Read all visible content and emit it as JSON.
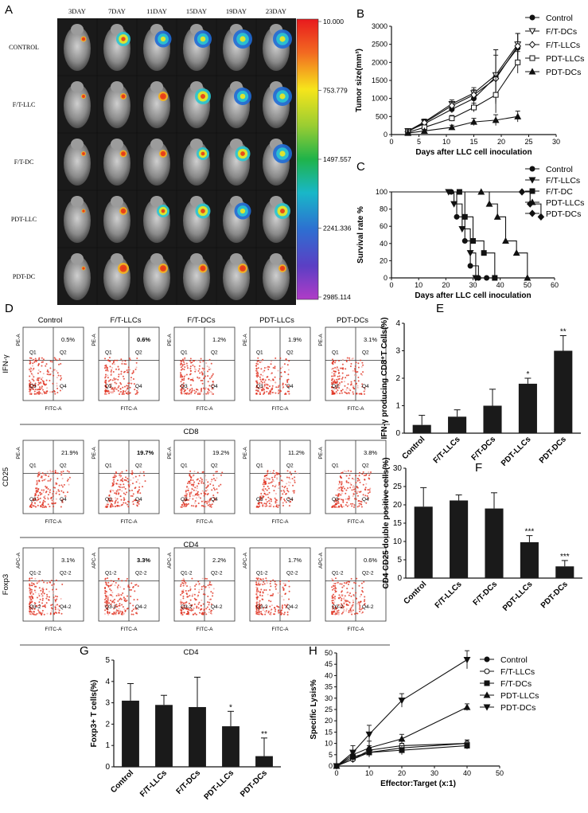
{
  "panel_letters": [
    "A",
    "B",
    "C",
    "D",
    "E",
    "F",
    "G",
    "H"
  ],
  "imaging": {
    "days": [
      "3DAY",
      "7DAY",
      "11DAY",
      "15DAY",
      "19DAY",
      "23DAY"
    ],
    "groups": [
      "CONTROL",
      "F/T-LLC",
      "F/T-DC",
      "PDT-LLC",
      "PDT-DC"
    ],
    "signal_level": [
      [
        0.15,
        0.7,
        0.85,
        0.9,
        1.0,
        1.0
      ],
      [
        0.1,
        0.2,
        0.4,
        0.8,
        0.9,
        1.0
      ],
      [
        0.1,
        0.25,
        0.3,
        0.6,
        0.75,
        1.0
      ],
      [
        0.05,
        0.3,
        0.6,
        0.75,
        0.85,
        0.8
      ],
      [
        0.05,
        0.5,
        0.4,
        0.35,
        0.4,
        0.3
      ]
    ],
    "colorbar_ticks": [
      "10.000",
      "753.779",
      "1497.557",
      "2241.336",
      "2985.114"
    ]
  },
  "flow": {
    "rows": [
      {
        "ylabel": "IFN-γ",
        "xlabel": "CD8",
        "y_axis": "PE-A",
        "x_axis": "FITC-A",
        "quadrants": [
          "Q1",
          "Q2",
          "Q3",
          "Q4"
        ],
        "groups": [
          "Control",
          "F/T-LLCs",
          "F/T-DCs",
          "PDT-LLCs",
          "PDT-DCs"
        ],
        "values": [
          "0.5%",
          "0.6%",
          "1.2%",
          "1.9%",
          "3.1%"
        ]
      },
      {
        "ylabel": "CD25",
        "xlabel": "CD4",
        "y_axis": "PE-A",
        "x_axis": "FITC-A",
        "quadrants": [
          "Q1",
          "Q2",
          "Q3",
          "Q4"
        ],
        "values": [
          "21.9%",
          "19.7%",
          "19.2%",
          "11.2%",
          "3.8%"
        ]
      },
      {
        "ylabel": "Foxp3",
        "xlabel": "CD4",
        "y_axis": "APC-A",
        "x_axis": "FITC-A",
        "quadrants": [
          "Q1-2",
          "Q2-2",
          "Q3-2",
          "Q4-2"
        ],
        "values": [
          "3.1%",
          "3.3%",
          "2.2%",
          "1.7%",
          "0.6%"
        ]
      }
    ]
  },
  "chart_data": [
    {
      "panel": "B",
      "type": "line",
      "xlabel": "Days after LLC cell inoculation",
      "ylabel": "Tumor size(mm³)",
      "xlim": [
        0,
        30
      ],
      "ylim": [
        0,
        3000
      ],
      "xticks": [
        0,
        5,
        10,
        15,
        20,
        25,
        30
      ],
      "yticks": [
        0,
        500,
        1000,
        1500,
        2000,
        2500,
        3000
      ],
      "series": [
        {
          "name": "Control",
          "marker": "circle-filled",
          "x": [
            3,
            6,
            11,
            15,
            19,
            23
          ],
          "y": [
            100,
            300,
            700,
            1000,
            1600,
            2400
          ],
          "err": [
            60,
            70,
            100,
            150,
            750,
            400
          ]
        },
        {
          "name": "F/T-DCs",
          "marker": "tri-down-open",
          "x": [
            3,
            6,
            11,
            15,
            19,
            23
          ],
          "y": [
            100,
            350,
            850,
            1150,
            1650,
            2500
          ],
          "err": [
            60,
            80,
            110,
            150,
            700,
            300
          ]
        },
        {
          "name": "F/T-LLCs",
          "marker": "diamond-open",
          "x": [
            3,
            6,
            11,
            15,
            19,
            23
          ],
          "y": [
            80,
            330,
            800,
            1100,
            1550,
            2450
          ],
          "err": [
            50,
            70,
            100,
            140,
            650,
            350
          ]
        },
        {
          "name": "PDT-LLCs",
          "marker": "square-open",
          "x": [
            3,
            6,
            11,
            15,
            19,
            23
          ],
          "y": [
            60,
            200,
            450,
            750,
            1100,
            2000
          ],
          "err": [
            40,
            60,
            80,
            120,
            500,
            300
          ]
        },
        {
          "name": "PDT-DCs",
          "marker": "tri-up-filled",
          "x": [
            3,
            6,
            11,
            15,
            19,
            23
          ],
          "y": [
            40,
            100,
            200,
            350,
            400,
            500
          ],
          "err": [
            30,
            40,
            60,
            100,
            150,
            150
          ]
        }
      ]
    },
    {
      "panel": "C",
      "type": "line",
      "xlabel": "Days after LLC cell inoculation",
      "ylabel": "Survival rate %",
      "xlim": [
        0,
        60
      ],
      "ylim": [
        0,
        100
      ],
      "xticks": [
        0,
        10,
        20,
        30,
        40,
        50,
        60
      ],
      "yticks": [
        0,
        20,
        40,
        60,
        80,
        100
      ],
      "series": [
        {
          "name": "Control",
          "marker": "circle-filled",
          "x": [
            0,
            22,
            24,
            27,
            29,
            32,
            35,
            100
          ],
          "y": [
            100,
            100,
            71,
            43,
            14,
            0,
            0,
            0
          ]
        },
        {
          "name": "F/T-LLCs",
          "marker": "tri-down-filled",
          "x": [
            0,
            21,
            23,
            26,
            29,
            31,
            100
          ],
          "y": [
            100,
            100,
            86,
            57,
            29,
            0,
            0
          ]
        },
        {
          "name": "F/T-DC",
          "marker": "square-filled",
          "x": [
            0,
            25,
            27,
            30,
            34,
            38,
            100
          ],
          "y": [
            100,
            100,
            71,
            43,
            29,
            0,
            0
          ]
        },
        {
          "name": "PDT-LLCs",
          "marker": "tri-up-filled",
          "x": [
            0,
            33,
            36,
            39,
            42,
            46,
            50,
            100
          ],
          "y": [
            100,
            100,
            86,
            71,
            43,
            29,
            0,
            0
          ]
        },
        {
          "name": "PDT-DCs",
          "marker": "diamond-filled",
          "x": [
            0,
            48,
            51,
            55
          ],
          "y": [
            100,
            100,
            86,
            71
          ]
        }
      ]
    },
    {
      "panel": "E",
      "type": "bar",
      "categories": [
        "Control",
        "F/T-LLCs",
        "F/T-DCs",
        "PDT-LLCs",
        "PDT-DCs"
      ],
      "values": [
        0.3,
        0.6,
        1.0,
        1.8,
        3.0
      ],
      "err": [
        0.35,
        0.25,
        0.6,
        0.2,
        0.55
      ],
      "significance": [
        "",
        "",
        "",
        "*",
        "**"
      ],
      "ylabel": "IFN-γ producing CD8⁺T Cells(%)",
      "ylim": [
        0,
        4
      ],
      "yticks": [
        0,
        1,
        2,
        3,
        4
      ]
    },
    {
      "panel": "F",
      "type": "bar",
      "categories": [
        "Control",
        "F/T-LLCs",
        "F/T-DCs",
        "PDT-LLCs",
        "PDT-DCs"
      ],
      "values": [
        19.5,
        21.2,
        19.0,
        9.8,
        3.2
      ],
      "err": [
        5.2,
        1.5,
        4.3,
        1.8,
        1.6
      ],
      "significance": [
        "",
        "",
        "",
        "***",
        "***"
      ],
      "ylabel": "CD4 CD25 double positive cells(%)",
      "ylim": [
        0,
        30
      ],
      "yticks": [
        0,
        5,
        10,
        15,
        20,
        25,
        30
      ]
    },
    {
      "panel": "G",
      "type": "bar",
      "categories": [
        "Control",
        "F/T-LLCs",
        "F/T-DCs",
        "PDT-LLCs",
        "PDT-DCs"
      ],
      "values": [
        3.1,
        2.9,
        2.8,
        1.9,
        0.5
      ],
      "err": [
        0.8,
        0.45,
        1.4,
        0.7,
        0.85
      ],
      "significance": [
        "",
        "",
        "",
        "*",
        "**"
      ],
      "ylabel": "Foxp3+ T cells(%)",
      "ylim": [
        0,
        5
      ],
      "yticks": [
        0,
        1,
        2,
        3,
        4,
        5
      ]
    },
    {
      "panel": "H",
      "type": "line",
      "xlabel": "Effector:Target (x:1)",
      "ylabel": "Specific Lysis%",
      "xlim": [
        0,
        50
      ],
      "ylim": [
        0,
        50
      ],
      "xticks": [
        0,
        10,
        20,
        30,
        40,
        50
      ],
      "yticks": [
        0,
        5,
        10,
        15,
        20,
        25,
        30,
        35,
        40,
        45,
        50
      ],
      "series": [
        {
          "name": "Control",
          "marker": "circle-filled",
          "x": [
            0,
            5,
            10,
            20,
            40
          ],
          "y": [
            0,
            3,
            6,
            8,
            10
          ],
          "err": [
            0.5,
            1.5,
            2,
            2,
            1.5
          ]
        },
        {
          "name": "F/T-LLCs",
          "marker": "circle-open",
          "x": [
            0,
            5,
            10,
            20,
            40
          ],
          "y": [
            0,
            3,
            7,
            9,
            10
          ],
          "err": [
            0.5,
            1.5,
            2,
            2,
            1.5
          ]
        },
        {
          "name": "F/T-DCs",
          "marker": "square-filled",
          "x": [
            0,
            5,
            10,
            20,
            40
          ],
          "y": [
            0,
            4,
            6,
            7,
            9
          ],
          "err": [
            0.5,
            2,
            2,
            2,
            1.5
          ]
        },
        {
          "name": "PDT-LLCs",
          "marker": "tri-up-filled",
          "x": [
            0,
            5,
            10,
            20,
            40
          ],
          "y": [
            0,
            5,
            8,
            12,
            26
          ],
          "err": [
            0.5,
            2,
            3,
            2,
            1.5
          ]
        },
        {
          "name": "PDT-DCs",
          "marker": "tri-down-filled",
          "x": [
            0,
            5,
            10,
            20,
            40
          ],
          "y": [
            0,
            6,
            14,
            29,
            47
          ],
          "err": [
            0.5,
            3,
            4,
            3,
            4
          ]
        }
      ]
    }
  ]
}
